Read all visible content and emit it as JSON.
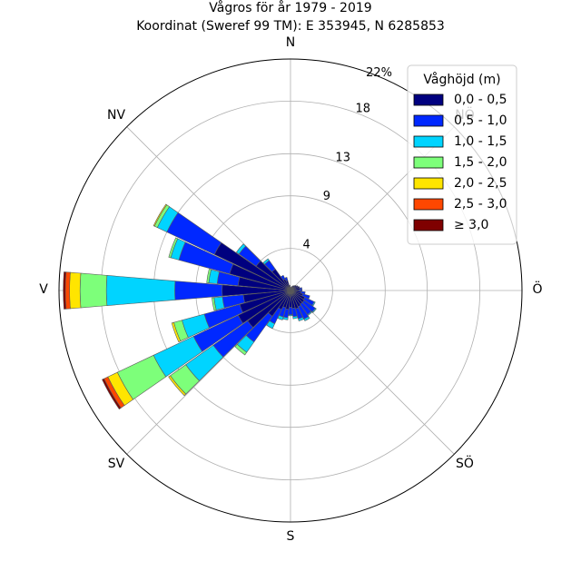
{
  "chart_data": {
    "type": "windrose",
    "title_lines": [
      "Vågros för år 1979 - 2019",
      "Koordinat (Sweref 99 TM): E 353945, N 6285853"
    ],
    "directions": [
      "N",
      "NÖ",
      "Ö",
      "SÖ",
      "S",
      "SV",
      "V",
      "NV"
    ],
    "compass_labels": {
      "n": "N",
      "ne": "NÖ",
      "e": "Ö",
      "se": "SÖ",
      "s": "S",
      "sw": "SV",
      "w": "V",
      "nw": "NV"
    },
    "radial_axis": {
      "max": 22,
      "ticks": [
        4,
        9,
        13,
        18
      ],
      "tick_labels": [
        "4",
        "9",
        "13",
        "18"
      ],
      "outer_label": "22%",
      "unit": "%"
    },
    "sector_width_deg": 10,
    "legend": {
      "title": "Våghöjd (m)",
      "placement": "top-right"
    },
    "series": [
      {
        "name": "0,0 - 0,5",
        "color": "#00007f"
      },
      {
        "name": "0,5 - 1,0",
        "color": "#0028ff"
      },
      {
        "name": "1,0 - 1,5",
        "color": "#00d4ff"
      },
      {
        "name": "1,5 - 2,0",
        "color": "#7dff7a"
      },
      {
        "name": "2,0 - 2,5",
        "color": "#ffe500"
      },
      {
        "name": "2,5 - 3,0",
        "color": "#ff4700"
      },
      {
        "name": "≥ 3,0",
        "color": "#7f0000"
      }
    ],
    "sectors": [
      {
        "direction_deg": 0,
        "values": [
          0.3
        ]
      },
      {
        "direction_deg": 10,
        "values": [
          0.3
        ]
      },
      {
        "direction_deg": 20,
        "values": [
          0.4
        ]
      },
      {
        "direction_deg": 30,
        "values": [
          0.5
        ]
      },
      {
        "direction_deg": 40,
        "values": [
          0.6
        ]
      },
      {
        "direction_deg": 50,
        "values": [
          0.7
        ]
      },
      {
        "direction_deg": 60,
        "values": [
          0.8
        ]
      },
      {
        "direction_deg": 70,
        "values": [
          0.9
        ]
      },
      {
        "direction_deg": 80,
        "values": [
          0.9,
          0.2
        ]
      },
      {
        "direction_deg": 90,
        "values": [
          0.8,
          0.3
        ]
      },
      {
        "direction_deg": 100,
        "values": [
          1.0,
          0.4
        ]
      },
      {
        "direction_deg": 110,
        "values": [
          1.2,
          0.7
        ]
      },
      {
        "direction_deg": 120,
        "values": [
          1.5,
          1.0,
          0.1
        ]
      },
      {
        "direction_deg": 130,
        "values": [
          1.6,
          1.3,
          0.1
        ]
      },
      {
        "direction_deg": 140,
        "values": [
          1.6,
          1.2,
          0.1
        ]
      },
      {
        "direction_deg": 150,
        "values": [
          1.7,
          1.3,
          0.2
        ]
      },
      {
        "direction_deg": 160,
        "values": [
          1.8,
          1.0,
          0.2
        ]
      },
      {
        "direction_deg": 170,
        "values": [
          1.7,
          0.8,
          0.2
        ]
      },
      {
        "direction_deg": 180,
        "values": [
          1.6,
          0.7,
          0.1
        ]
      },
      {
        "direction_deg": 190,
        "values": [
          1.8,
          0.8,
          0.2
        ]
      },
      {
        "direction_deg": 200,
        "values": [
          1.7,
          0.9,
          0.3
        ]
      },
      {
        "direction_deg": 210,
        "values": [
          2.0,
          1.5,
          0.5
        ]
      },
      {
        "direction_deg": 220,
        "values": [
          3.0,
          3.0,
          1.2,
          0.3
        ]
      },
      {
        "direction_deg": 230,
        "values": [
          5.0,
          4.0,
          3.2,
          1.8,
          0.2
        ]
      },
      {
        "direction_deg": 240,
        "values": [
          5.5,
          4.7,
          4.2,
          3.8,
          1.0,
          0.4,
          0.2
        ]
      },
      {
        "direction_deg": 250,
        "values": [
          5.0,
          3.5,
          2.2,
          0.8,
          0.2
        ]
      },
      {
        "direction_deg": 260,
        "values": [
          4.5,
          2.0,
          0.8,
          0.2
        ]
      },
      {
        "direction_deg": 270,
        "values": [
          6.5,
          4.5,
          6.5,
          2.5,
          1.0,
          0.4,
          0.2
        ]
      },
      {
        "direction_deg": 280,
        "values": [
          5.0,
          2.0,
          0.8,
          0.2
        ]
      },
      {
        "direction_deg": 290,
        "values": [
          6.0,
          5.0,
          0.8,
          0.2
        ]
      },
      {
        "direction_deg": 300,
        "values": [
          8.0,
          5.0,
          1.0,
          0.3,
          0.1
        ]
      },
      {
        "direction_deg": 310,
        "values": [
          4.0,
          2.0,
          0.3
        ]
      },
      {
        "direction_deg": 320,
        "values": [
          2.5,
          1.0,
          0.2
        ]
      },
      {
        "direction_deg": 330,
        "values": [
          1.2,
          0.4
        ]
      },
      {
        "direction_deg": 340,
        "values": [
          1.0,
          0.3
        ]
      },
      {
        "direction_deg": 350,
        "values": [
          0.5
        ]
      }
    ]
  }
}
